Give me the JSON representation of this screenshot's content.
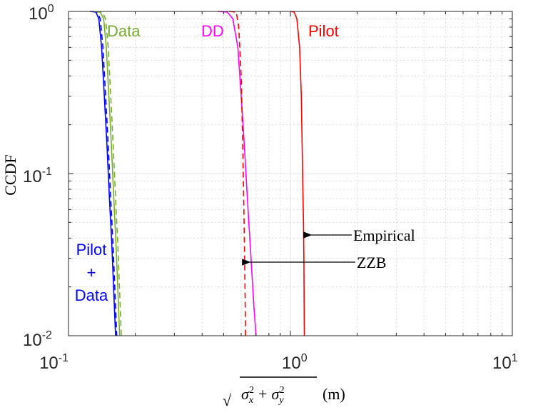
{
  "chart_data": {
    "type": "line",
    "xscale": "log",
    "yscale": "log",
    "xlim": [
      0.1,
      10
    ],
    "ylim": [
      0.01,
      1
    ],
    "xlabel": "sqrt(σx² + σy²) (m)",
    "xlabel_parts": {
      "sqrt": "√",
      "sigma_x": "σ",
      "sub_x": "x",
      "sq1": "2",
      "plus": "+",
      "sigma_y": "σ",
      "sub_y": "y",
      "sq2": "2",
      "unit": "(m)"
    },
    "ylabel": "CCDF",
    "x_ticks": [
      {
        "value": 0.1,
        "base": "10",
        "exp": "-1"
      },
      {
        "value": 1,
        "base": "10",
        "exp": "0"
      },
      {
        "value": 10,
        "base": "10",
        "exp": "1"
      }
    ],
    "y_ticks": [
      {
        "value": 1,
        "base": "10",
        "exp": "0"
      },
      {
        "value": 0.1,
        "base": "10",
        "exp": "-1"
      },
      {
        "value": 0.01,
        "base": "10",
        "exp": "-2"
      }
    ],
    "grid": true,
    "series": [
      {
        "name": "Pilot + Data (Empirical)",
        "color": "#0000ff",
        "dash": "solid",
        "points": [
          [
            0.125,
            1.0
          ],
          [
            0.133,
            0.99
          ],
          [
            0.137,
            0.9
          ],
          [
            0.141,
            0.6
          ],
          [
            0.145,
            0.3
          ],
          [
            0.149,
            0.15
          ],
          [
            0.153,
            0.07
          ],
          [
            0.157,
            0.035
          ],
          [
            0.161,
            0.015
          ],
          [
            0.163,
            0.01
          ]
        ]
      },
      {
        "name": "Pilot + Data (ZZB)",
        "color": "#0000ff",
        "dash": "dashed",
        "points": [
          [
            0.128,
            1.0
          ],
          [
            0.135,
            0.99
          ],
          [
            0.139,
            0.9
          ],
          [
            0.143,
            0.6
          ],
          [
            0.147,
            0.3
          ],
          [
            0.151,
            0.15
          ],
          [
            0.155,
            0.07
          ],
          [
            0.159,
            0.035
          ],
          [
            0.163,
            0.015
          ],
          [
            0.165,
            0.01
          ]
        ]
      },
      {
        "name": "Data (Empirical)",
        "color": "#77ac30",
        "dash": "solid",
        "points": [
          [
            0.13,
            1.0
          ],
          [
            0.139,
            0.99
          ],
          [
            0.144,
            0.9
          ],
          [
            0.148,
            0.6
          ],
          [
            0.152,
            0.3
          ],
          [
            0.156,
            0.15
          ],
          [
            0.16,
            0.07
          ],
          [
            0.164,
            0.035
          ],
          [
            0.168,
            0.015
          ],
          [
            0.17,
            0.01
          ]
        ]
      },
      {
        "name": "Data (ZZB)",
        "color": "#77ac30",
        "dash": "dashed",
        "points": [
          [
            0.133,
            1.0
          ],
          [
            0.142,
            0.99
          ],
          [
            0.147,
            0.9
          ],
          [
            0.151,
            0.6
          ],
          [
            0.155,
            0.3
          ],
          [
            0.159,
            0.15
          ],
          [
            0.163,
            0.07
          ],
          [
            0.167,
            0.035
          ],
          [
            0.171,
            0.015
          ],
          [
            0.173,
            0.01
          ]
        ]
      },
      {
        "name": "DD (Empirical)",
        "color": "#ff00ff",
        "dash": "solid",
        "points": [
          [
            0.47,
            1.0
          ],
          [
            0.52,
            0.99
          ],
          [
            0.55,
            0.9
          ],
          [
            0.58,
            0.6
          ],
          [
            0.6,
            0.3
          ],
          [
            0.62,
            0.15
          ],
          [
            0.64,
            0.07
          ],
          [
            0.66,
            0.035
          ],
          [
            0.685,
            0.015
          ],
          [
            0.7,
            0.01
          ]
        ]
      },
      {
        "name": "DD (ZZB)",
        "color": "#ff0000",
        "dash": "dashed",
        "points": [
          [
            0.53,
            1.0
          ],
          [
            0.57,
            0.99
          ],
          [
            0.585,
            0.8
          ],
          [
            0.6,
            0.4
          ],
          [
            0.61,
            0.15
          ],
          [
            0.617,
            0.06
          ],
          [
            0.623,
            0.025
          ],
          [
            0.628,
            0.01
          ]
        ]
      },
      {
        "name": "Pilot (Empirical)",
        "color": "#ff0000",
        "dash": "solid",
        "points": [
          [
            1.0,
            1.0
          ],
          [
            1.04,
            0.99
          ],
          [
            1.07,
            0.9
          ],
          [
            1.1,
            0.6
          ],
          [
            1.12,
            0.3
          ],
          [
            1.135,
            0.1
          ],
          [
            1.145,
            0.05
          ],
          [
            1.15,
            0.03
          ],
          [
            1.155,
            0.01
          ]
        ]
      }
    ],
    "labels": [
      {
        "text": "Data",
        "color": "#77ac30"
      },
      {
        "text": "DD",
        "color": "#ff00ff"
      },
      {
        "text": "Pilot",
        "color": "#ff0000"
      },
      {
        "text": "Pilot",
        "color": "#0000ff"
      },
      {
        "text": "+",
        "color": "#0000ff"
      },
      {
        "text": "Data",
        "color": "#0000ff"
      }
    ],
    "annotations": [
      {
        "text": "Empirical",
        "target": [
          1.16,
          0.042
        ]
      },
      {
        "text": "ZZB",
        "target": [
          0.62,
          0.029
        ]
      }
    ]
  }
}
